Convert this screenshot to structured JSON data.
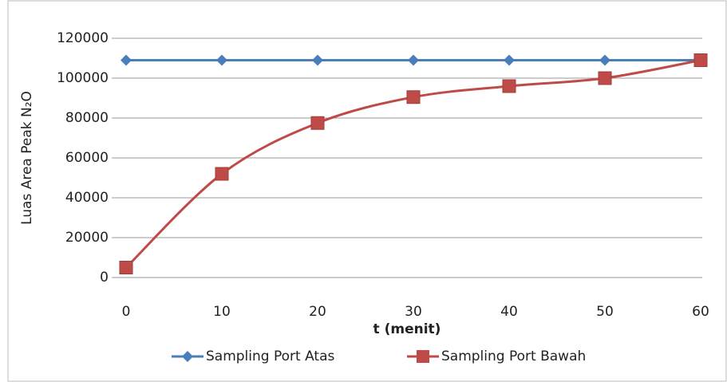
{
  "chart_data": {
    "type": "line",
    "y_label": "Luas Area Peak N₂O",
    "x_label": "t (menit)",
    "categories": [
      0,
      10,
      20,
      30,
      40,
      50,
      60
    ],
    "series": [
      {
        "name": "Sampling Port Atas",
        "color": "#4a7ebb",
        "marker": "diamond",
        "values": [
          109000,
          109000,
          109000,
          109000,
          109000,
          109000,
          109000
        ]
      },
      {
        "name": "Sampling Port Bawah",
        "color": "#be4b48",
        "marker": "square",
        "values": [
          5000,
          52000,
          77500,
          90500,
          96000,
          100000,
          109000
        ]
      }
    ],
    "ylim": [
      0,
      120000
    ],
    "yticks": [
      0,
      20000,
      40000,
      60000,
      80000,
      100000,
      120000
    ],
    "grid": true,
    "legend": "bottom"
  }
}
